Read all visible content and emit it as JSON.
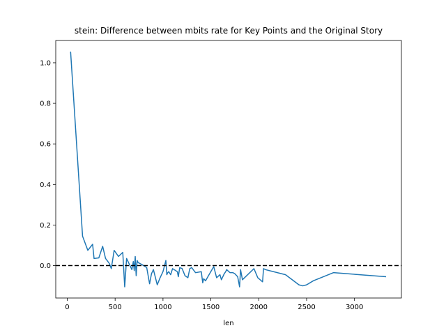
{
  "chart_data": {
    "type": "line",
    "title": "stein: Difference between mbits rate for Key Points and the Original Story",
    "xlabel": "len",
    "ylabel": "",
    "xlim": [
      -120,
      3490
    ],
    "ylim": [
      -0.16,
      1.11
    ],
    "xticks": [
      0,
      500,
      1000,
      1500,
      2000,
      2500,
      3000
    ],
    "yticks": [
      0.0,
      0.2,
      0.4,
      0.6,
      0.8,
      1.0
    ],
    "ytick_labels": [
      "0.0",
      "0.2",
      "0.4",
      "0.6",
      "0.8",
      "1.0"
    ],
    "grid": false,
    "line_color": "#1f77b4",
    "reference_line": {
      "y": 0.0,
      "style": "dashed",
      "color": "#000000"
    },
    "series": [
      {
        "name": "",
        "x": [
          35,
          160,
          215,
          265,
          280,
          330,
          370,
          400,
          440,
          460,
          490,
          535,
          580,
          600,
          620,
          660,
          675,
          690,
          700,
          710,
          720,
          730,
          740,
          780,
          830,
          860,
          880,
          900,
          940,
          970,
          1000,
          1030,
          1040,
          1050,
          1060,
          1080,
          1100,
          1150,
          1160,
          1175,
          1200,
          1230,
          1260,
          1280,
          1300,
          1340,
          1400,
          1415,
          1425,
          1445,
          1475,
          1530,
          1560,
          1595,
          1610,
          1640,
          1655,
          1665,
          1700,
          1730,
          1750,
          1780,
          1800,
          1810,
          1830,
          1950,
          1990,
          2040,
          2050,
          2070,
          2280,
          2420,
          2460,
          2500,
          2570,
          2780,
          3330
        ],
        "y": [
          1.055,
          0.145,
          0.075,
          0.105,
          0.035,
          0.038,
          0.095,
          0.035,
          0.01,
          -0.015,
          0.075,
          0.045,
          0.065,
          -0.105,
          0.035,
          -0.005,
          -0.02,
          0.02,
          -0.025,
          0.045,
          -0.05,
          0.025,
          0.015,
          0.005,
          -0.01,
          -0.09,
          -0.04,
          -0.02,
          -0.095,
          -0.06,
          -0.03,
          0.025,
          -0.045,
          -0.035,
          -0.03,
          -0.045,
          -0.015,
          -0.03,
          -0.055,
          -0.01,
          -0.015,
          -0.05,
          -0.06,
          -0.015,
          -0.01,
          -0.035,
          -0.03,
          -0.085,
          -0.065,
          -0.075,
          -0.05,
          -0.005,
          -0.06,
          -0.045,
          -0.07,
          -0.04,
          -0.03,
          -0.02,
          -0.035,
          -0.035,
          -0.04,
          -0.055,
          -0.105,
          -0.02,
          -0.07,
          -0.015,
          -0.06,
          -0.08,
          -0.015,
          -0.02,
          -0.045,
          -0.095,
          -0.1,
          -0.095,
          -0.075,
          -0.035,
          -0.055
        ]
      }
    ]
  }
}
